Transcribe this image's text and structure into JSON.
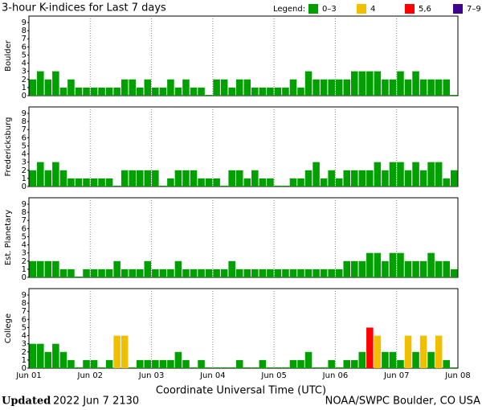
{
  "title": "3-hour K-indices for Last 7 days",
  "legend": {
    "title": "Legend:",
    "levels": [
      {
        "label": "0–3",
        "color": "#00a000",
        "range": [
          0,
          3
        ]
      },
      {
        "label": "4",
        "color": "#f0c000",
        "range": [
          4,
          4
        ]
      },
      {
        "label": "5,6",
        "color": "#ff0000",
        "range": [
          5,
          6
        ]
      },
      {
        "label": "7–9",
        "color": "#400090",
        "range": [
          7,
          9
        ]
      }
    ]
  },
  "xticks": [
    "Jun 01",
    "Jun 02",
    "Jun 03",
    "Jun 04",
    "Jun 05",
    "Jun 06",
    "Jun 07",
    "Jun 08"
  ],
  "xlabel": "Coordinate Universal Time (UTC)",
  "footer": {
    "updated_label": "Updated",
    "updated": "2022 Jun  7 2130",
    "source": "NOAA/SWPC Boulder, CO USA"
  },
  "chart_data": [
    {
      "type": "bar",
      "ylabel": "Boulder",
      "ylim": [
        0,
        9
      ],
      "yticks": [
        0,
        1,
        2,
        3,
        4,
        5,
        6,
        7,
        8,
        9
      ],
      "values": [
        2,
        3,
        2,
        3,
        1,
        2,
        1,
        1,
        1,
        1,
        1,
        1,
        2,
        2,
        1,
        2,
        1,
        1,
        2,
        1,
        2,
        1,
        1,
        0,
        2,
        2,
        1,
        2,
        2,
        1,
        1,
        1,
        1,
        1,
        2,
        1,
        3,
        2,
        2,
        2,
        2,
        2,
        3,
        3,
        3,
        3,
        2,
        2,
        3,
        2,
        3,
        2,
        2,
        2,
        2,
        0
      ]
    },
    {
      "type": "bar",
      "ylabel": "Fredericksburg",
      "ylim": [
        0,
        9
      ],
      "yticks": [
        0,
        1,
        2,
        3,
        4,
        5,
        6,
        7,
        8,
        9
      ],
      "values": [
        2,
        3,
        2,
        3,
        2,
        1,
        1,
        1,
        1,
        1,
        1,
        0,
        2,
        2,
        2,
        2,
        2,
        0,
        1,
        2,
        2,
        2,
        1,
        1,
        1,
        0,
        2,
        2,
        1,
        2,
        1,
        1,
        0,
        0,
        1,
        1,
        2,
        3,
        1,
        2,
        1,
        2,
        2,
        2,
        2,
        3,
        2,
        3,
        3,
        2,
        3,
        2,
        3,
        3,
        1,
        2
      ]
    },
    {
      "type": "bar",
      "ylabel": "Est. Planetary",
      "ylim": [
        0,
        9
      ],
      "yticks": [
        0,
        1,
        2,
        3,
        4,
        5,
        6,
        7,
        8,
        9
      ],
      "values": [
        2,
        2,
        2,
        2,
        1,
        1,
        0,
        1,
        1,
        1,
        1,
        2,
        1,
        1,
        1,
        2,
        1,
        1,
        1,
        2,
        1,
        1,
        1,
        1,
        1,
        1,
        2,
        1,
        1,
        1,
        1,
        1,
        1,
        1,
        1,
        1,
        1,
        1,
        1,
        1,
        1,
        2,
        2,
        2,
        3,
        3,
        2,
        3,
        3,
        2,
        2,
        2,
        3,
        2,
        2,
        1
      ]
    },
    {
      "type": "bar",
      "ylabel": "College",
      "ylim": [
        0,
        9
      ],
      "yticks": [
        0,
        1,
        2,
        3,
        4,
        5,
        6,
        7,
        8,
        9
      ],
      "values": [
        3,
        3,
        2,
        3,
        2,
        1,
        0,
        1,
        1,
        0,
        1,
        4,
        4,
        0,
        1,
        1,
        1,
        1,
        1,
        2,
        1,
        0,
        1,
        0,
        0,
        0,
        0,
        1,
        0,
        0,
        1,
        0,
        0,
        0,
        1,
        1,
        2,
        0,
        0,
        1,
        0,
        1,
        1,
        2,
        5,
        4,
        2,
        2,
        1,
        4,
        2,
        4,
        2,
        4,
        1,
        0
      ]
    }
  ]
}
